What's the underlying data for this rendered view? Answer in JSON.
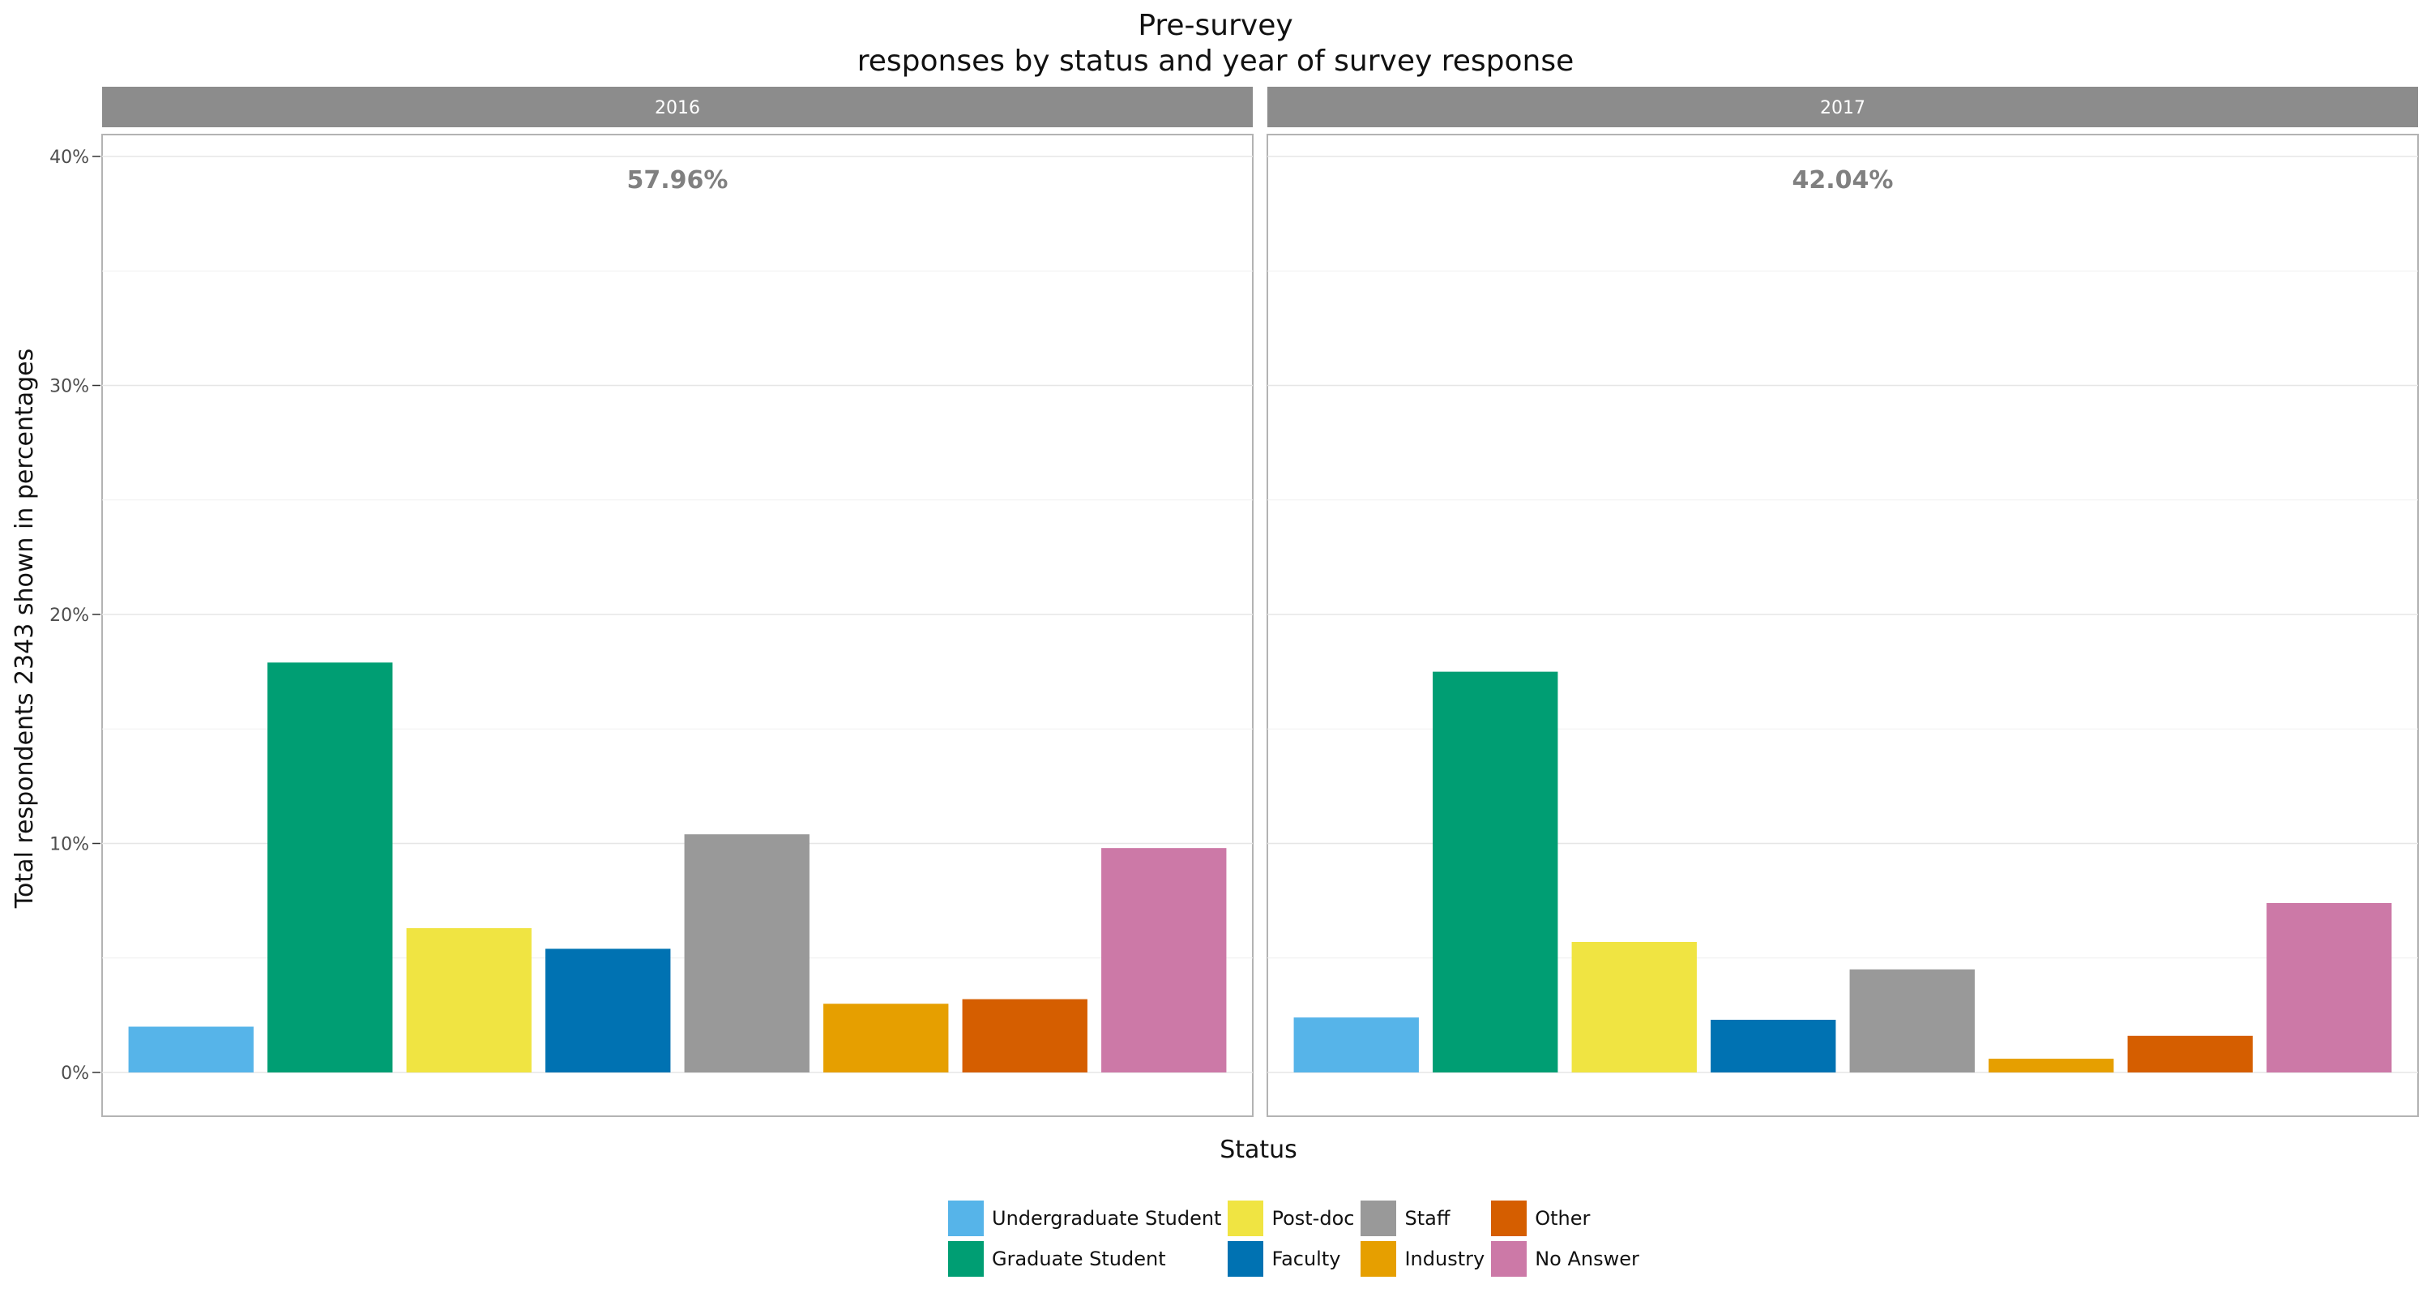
{
  "chart_data": {
    "type": "bar",
    "title": "Pre-survey",
    "subtitle": "responses by status and year of survey response",
    "xlabel": "Status",
    "ylabel": "Total respondents 2343 shown in percentages",
    "ylim": [
      0,
      40
    ],
    "y_ticks": [
      "0%",
      "10%",
      "20%",
      "30%",
      "40%"
    ],
    "y_tick_values": [
      0,
      10,
      20,
      30,
      40
    ],
    "grid": true,
    "legend_position": "bottom",
    "categories": [
      "Undergraduate Student",
      "Graduate Student",
      "Post-doc",
      "Faculty",
      "Staff",
      "Industry",
      "Other",
      "No Answer"
    ],
    "colors": [
      "#56B4E9",
      "#009E73",
      "#F0E442",
      "#0072B2",
      "#999999",
      "#E69F00",
      "#D55E00",
      "#CC79A7"
    ],
    "panels": [
      {
        "facet": "2016",
        "total_label": "57.96%",
        "values": [
          2.0,
          17.9,
          6.3,
          5.4,
          10.4,
          3.0,
          3.2,
          9.8
        ]
      },
      {
        "facet": "2017",
        "total_label": "42.04%",
        "values": [
          2.4,
          17.5,
          5.7,
          2.3,
          4.5,
          0.6,
          1.6,
          7.4
        ]
      }
    ]
  }
}
